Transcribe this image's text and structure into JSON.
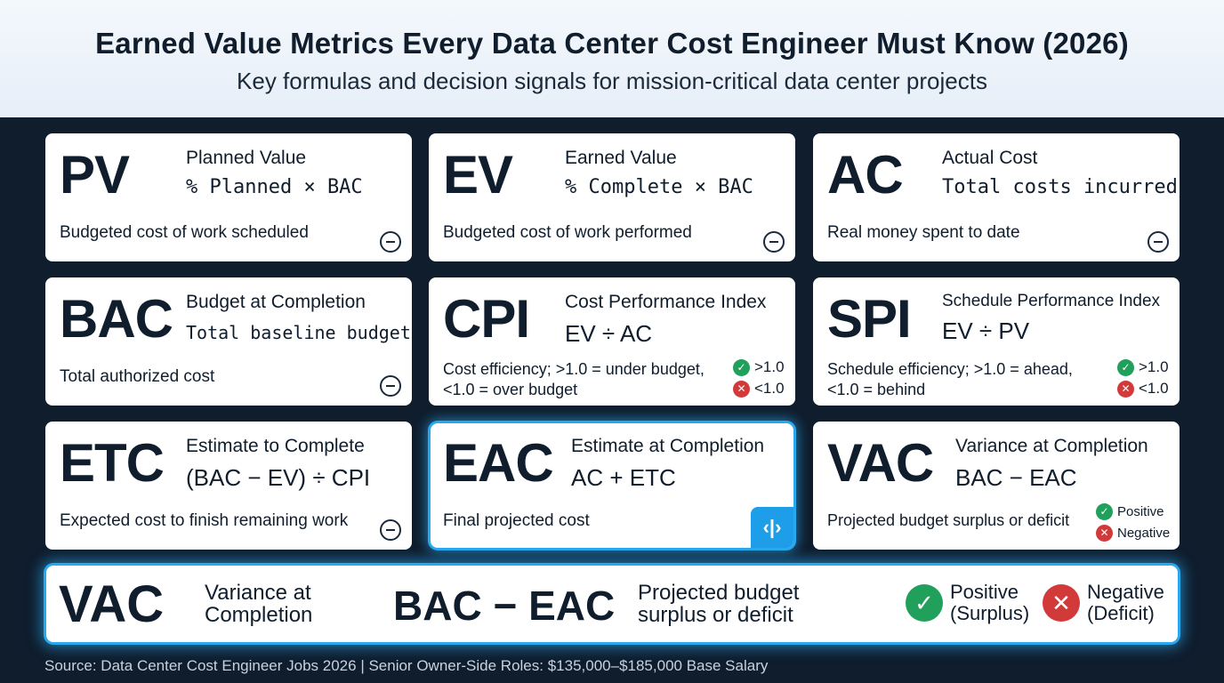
{
  "header": {
    "title": "Earned Value Metrics Every Data Center Cost Engineer Must Know (2026)",
    "subtitle": "Key formulas and decision signals for mission-critical data center projects"
  },
  "cards": [
    {
      "abbr": "PV",
      "name": "Planned Value",
      "formula": "% Planned × BAC",
      "desc": "Budgeted cost of work scheduled"
    },
    {
      "abbr": "EV",
      "name": "Earned Value",
      "formula": "% Complete × BAC",
      "desc": "Budgeted cost of work performed"
    },
    {
      "abbr": "AC",
      "name": "Actual Cost",
      "formula": "Total costs incurred",
      "desc": "Real money spent to date"
    },
    {
      "abbr": "BAC",
      "name": "Budget at Completion",
      "formula": "Total baseline budget",
      "desc": "Total authorized cost"
    },
    {
      "abbr": "CPI",
      "name": "Cost Performance Index",
      "formula": "EV ÷ AC",
      "desc": "Cost efficiency; >1.0 = under budget, <1.0 = over budget",
      "good": ">1.0",
      "bad": "<1.0"
    },
    {
      "abbr": "SPI",
      "name": "Schedule Performance Index",
      "formula": "EV ÷ PV",
      "desc": "Schedule efficiency; >1.0 = ahead, <1.0 = behind",
      "good": ">1.0",
      "bad": "<1.0"
    },
    {
      "abbr": "ETC",
      "name": "Estimate to Complete",
      "formula": "(BAC − EV) ÷ CPI",
      "desc": "Expected cost to finish remaining work"
    },
    {
      "abbr": "EAC",
      "name": "Estimate at Completion",
      "formula": "AC + ETC",
      "desc": "Final projected cost"
    },
    {
      "abbr": "VAC",
      "name": "Variance at Completion",
      "formula": "BAC − EAC",
      "desc": "Projected budget surplus or deficit",
      "good": "Positive",
      "bad": "Negative"
    }
  ],
  "banner": {
    "abbr": "VAC",
    "name": "Variance at Completion",
    "formula": "BAC − EAC",
    "desc": "Projected budget surplus or deficit",
    "positive": "Positive (Surplus)",
    "negative": "Negative (Deficit)"
  },
  "footer": "Source: Data Center Cost Engineer Jobs 2026 | Senior Owner-Side Roles: $135,000–$185,000 Base Salary",
  "icons": {
    "collapse": "minus-circle-icon",
    "check": "check-circle-icon",
    "cross": "x-circle-icon",
    "edit": "code-edit-icon"
  },
  "colors": {
    "background": "#0f1d2d",
    "accent": "#2aa8ee",
    "positive": "#20a05a",
    "negative": "#d23a3a"
  }
}
